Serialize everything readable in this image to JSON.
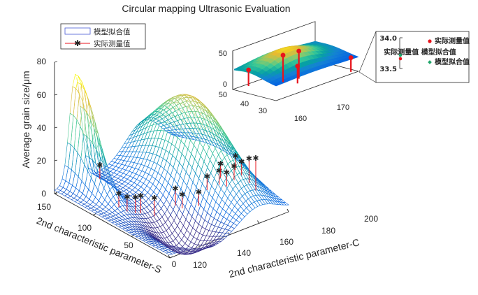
{
  "chart_data": [
    {
      "type": "surface",
      "title": "Circular mapping Ultrasonic Evaluation",
      "xlabel": "2nd characteristic parameter-C",
      "ylabel": "2nd characteristic parameter-S",
      "zlabel": "Average grain size/μm",
      "xlim": [
        120,
        200
      ],
      "ylim": [
        0,
        150
      ],
      "zlim": [
        0,
        80
      ],
      "xticks": [
        "120",
        "140",
        "160",
        "180",
        "200"
      ],
      "yticks": [
        "0",
        "50",
        "100",
        "150"
      ],
      "zticks": [
        "0",
        "20",
        "40",
        "60",
        "80"
      ],
      "legend": {
        "placement": "top-left",
        "entries": [
          "模型拟合值",
          "实际测量值"
        ]
      },
      "series": [
        {
          "name": "模型拟合值",
          "kind": "surface",
          "colormap": "parula",
          "peaks": [
            {
              "C": 134,
              "S": 148,
              "z": 66
            },
            {
              "C": 180,
              "S": 88,
              "z": 52
            }
          ],
          "valley": {
            "C": 150,
            "S": 40,
            "z": -20
          }
        },
        {
          "name": "实际测量值",
          "kind": "points",
          "color": "#e8141c",
          "points": [
            {
              "C": 135,
              "S": 120,
              "z": 20
            },
            {
              "C": 140,
              "S": 105,
              "z": 5
            },
            {
              "C": 143,
              "S": 100,
              "z": 3
            },
            {
              "C": 146,
              "S": 95,
              "z": 3
            },
            {
              "C": 148,
              "S": 92,
              "z": 4
            },
            {
              "C": 152,
              "S": 82,
              "z": 4
            },
            {
              "C": 162,
              "S": 65,
              "z": 7
            },
            {
              "C": 168,
              "S": 55,
              "z": 9
            },
            {
              "C": 172,
              "S": 52,
              "z": 18
            },
            {
              "C": 176,
              "S": 44,
              "z": 22
            },
            {
              "C": 180,
              "S": 42,
              "z": 20
            },
            {
              "C": 184,
              "S": 40,
              "z": 23
            },
            {
              "C": 188,
              "S": 38,
              "z": 25
            },
            {
              "C": 192,
              "S": 36,
              "z": 26
            },
            {
              "C": 196,
              "S": 35,
              "z": 25
            },
            {
              "C": 160,
              "S": 70,
              "z": 10
            },
            {
              "C": 178,
              "S": 46,
              "z": 25
            },
            {
              "C": 186,
              "S": 42,
              "z": 28
            }
          ]
        }
      ]
    },
    {
      "type": "surface",
      "role": "inset",
      "xlim": [
        155,
        175
      ],
      "ylim": [
        25,
        50
      ],
      "zlim": [
        0,
        60
      ],
      "xticks": [
        "160",
        "170"
      ],
      "yticks": [
        "30",
        "40",
        "50"
      ],
      "zticks": [
        "0",
        "50"
      ],
      "points": [
        {
          "C": 158,
          "S": 48,
          "z": 25
        },
        {
          "C": 163,
          "S": 40,
          "z": 42
        },
        {
          "C": 166,
          "S": 38,
          "z": 43
        },
        {
          "C": 164,
          "S": 34,
          "z": 27
        },
        {
          "C": 174,
          "S": 27,
          "z": 22
        }
      ]
    },
    {
      "type": "zoom",
      "role": "zoom-box",
      "ylim": [
        33.5,
        34.0
      ],
      "yticks": [
        "34.0",
        "33.5"
      ],
      "legend": {
        "placement": "right",
        "entries": [
          "实际测量值",
          "模型拟合值"
        ]
      },
      "overlap_text": "实际测量值 模型拟合值",
      "points": [
        {
          "series": "实际测量值",
          "y": 33.66,
          "color": "#e8141c"
        },
        {
          "series": "模型拟合值",
          "y": 33.72,
          "color": "#1fa56a"
        }
      ]
    }
  ]
}
